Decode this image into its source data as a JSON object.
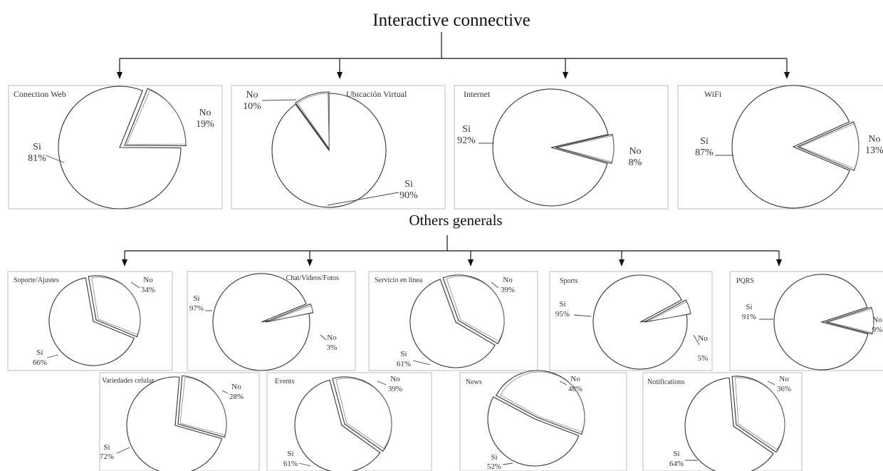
{
  "sections": {
    "top_title": "Interactive connective",
    "bottom_title": "Others generals"
  },
  "chart_data": [
    {
      "type": "pie",
      "title": "Conection Web",
      "categories": [
        "Si",
        "No"
      ],
      "values": [
        81,
        19
      ],
      "labels": [
        "81%",
        "19%"
      ]
    },
    {
      "type": "pie",
      "title": "Ubicación Virtual",
      "categories": [
        "Si",
        "No"
      ],
      "values": [
        90,
        10
      ],
      "labels": [
        "90%",
        "10%"
      ]
    },
    {
      "type": "pie",
      "title": "Internet",
      "categories": [
        "Si",
        "No"
      ],
      "values": [
        92,
        8
      ],
      "labels": [
        "92%",
        "8%"
      ]
    },
    {
      "type": "pie",
      "title": "WiFi",
      "categories": [
        "Si",
        "No"
      ],
      "values": [
        87,
        13
      ],
      "labels": [
        "87%",
        "13%"
      ]
    },
    {
      "type": "pie",
      "title": "Soporte/Ajustes",
      "categories": [
        "Si",
        "No"
      ],
      "values": [
        66,
        34
      ],
      "labels": [
        "66%",
        "34%"
      ]
    },
    {
      "type": "pie",
      "title": "Chat/Videos/Fotos",
      "categories": [
        "Si",
        "No"
      ],
      "values": [
        97,
        3
      ],
      "labels": [
        "97%",
        "3%"
      ]
    },
    {
      "type": "pie",
      "title": "Servicio en línea",
      "categories": [
        "Si",
        "No"
      ],
      "values": [
        61,
        39
      ],
      "labels": [
        "61%",
        "39%"
      ]
    },
    {
      "type": "pie",
      "title": "Sports",
      "categories": [
        "Si",
        "No"
      ],
      "values": [
        95,
        5
      ],
      "labels": [
        "95%",
        "5%"
      ]
    },
    {
      "type": "pie",
      "title": "PQRS",
      "categories": [
        "Si",
        "No"
      ],
      "values": [
        91,
        9
      ],
      "labels": [
        "91%",
        "9%"
      ]
    },
    {
      "type": "pie",
      "title": "Variedades celular",
      "categories": [
        "Si",
        "No"
      ],
      "values": [
        72,
        28
      ],
      "labels": [
        "72%",
        "28%"
      ]
    },
    {
      "type": "pie",
      "title": "Events",
      "categories": [
        "Si",
        "No"
      ],
      "values": [
        61,
        39
      ],
      "labels": [
        "61%",
        "39%"
      ]
    },
    {
      "type": "pie",
      "title": "News",
      "categories": [
        "Si",
        "No"
      ],
      "values": [
        52,
        48
      ],
      "labels": [
        "52%",
        "48%"
      ]
    },
    {
      "type": "pie",
      "title": "Notifications",
      "categories": [
        "Si",
        "No"
      ],
      "values": [
        64,
        36
      ],
      "labels": [
        "64%",
        "36%"
      ]
    }
  ]
}
